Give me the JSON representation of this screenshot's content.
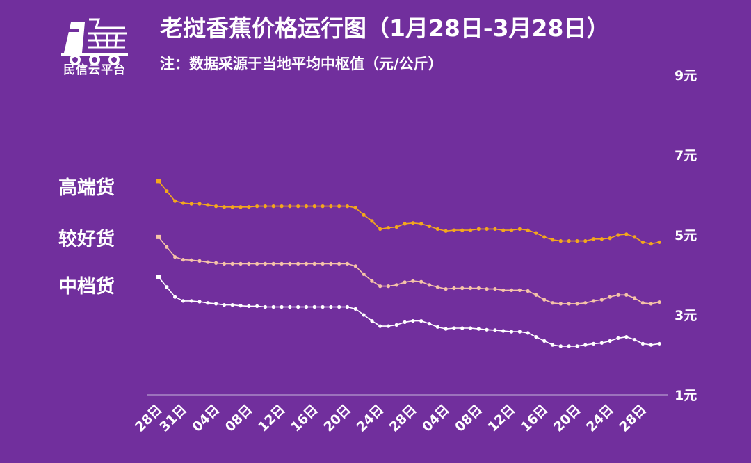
{
  "brand": {
    "name": "民信云平台",
    "logo_icon": "truck-logo-icon"
  },
  "header": {
    "title": "老挝香蕉价格运行图（1月28日-3月28日）",
    "subtitle": "注：数据采源于当地平均中枢值（元/公斤）"
  },
  "legend": {
    "high": "高端货",
    "good": "较好货",
    "mid": "中档货"
  },
  "chart_data": {
    "type": "line",
    "title": "老挝香蕉价格运行图（1月28日-3月28日）",
    "subtitle": "注：数据采源于当地平均中枢值（元/公斤）",
    "ylim": [
      1,
      9
    ],
    "y_ticks": [
      "9元",
      "7元",
      "5元",
      "3元",
      "1元"
    ],
    "y_tick_values": [
      9,
      7,
      5,
      3,
      1
    ],
    "x_tick_labels": [
      "28日",
      "31日",
      "04日",
      "08日",
      "12日",
      "16日",
      "20日",
      "24日",
      "28日",
      "04日",
      "08日",
      "12日",
      "16日",
      "20日",
      "24日",
      "28日"
    ],
    "x_tick_index": [
      0,
      3,
      7,
      11,
      15,
      19,
      23,
      27,
      31,
      35,
      39,
      43,
      47,
      51,
      55,
      59
    ],
    "legend_placement": "left",
    "grid": false,
    "colors": {
      "high": "#f4a81c",
      "good": "#f6c4a8",
      "mid": "#ffffff",
      "axis": "#c8b6dc",
      "background": "#712f9d"
    },
    "series": [
      {
        "name": "高端货",
        "key": "high",
        "values": [
          6.35,
          6.1,
          5.85,
          5.8,
          5.78,
          5.78,
          5.75,
          5.72,
          5.7,
          5.7,
          5.7,
          5.7,
          5.72,
          5.72,
          5.72,
          5.72,
          5.72,
          5.72,
          5.72,
          5.72,
          5.72,
          5.72,
          5.72,
          5.72,
          5.68,
          5.5,
          5.35,
          5.15,
          5.18,
          5.2,
          5.28,
          5.3,
          5.28,
          5.22,
          5.15,
          5.1,
          5.12,
          5.12,
          5.12,
          5.15,
          5.15,
          5.15,
          5.12,
          5.12,
          5.15,
          5.12,
          5.05,
          4.95,
          4.88,
          4.85,
          4.85,
          4.85,
          4.85,
          4.9,
          4.9,
          4.92,
          5.0,
          5.02,
          4.95,
          4.82,
          4.78,
          4.82
        ]
      },
      {
        "name": "较好货",
        "key": "good",
        "values": [
          4.95,
          4.7,
          4.45,
          4.38,
          4.37,
          4.35,
          4.32,
          4.3,
          4.28,
          4.28,
          4.28,
          4.28,
          4.28,
          4.28,
          4.28,
          4.28,
          4.28,
          4.28,
          4.28,
          4.28,
          4.28,
          4.28,
          4.28,
          4.28,
          4.22,
          4.02,
          3.85,
          3.72,
          3.72,
          3.75,
          3.82,
          3.85,
          3.83,
          3.75,
          3.7,
          3.65,
          3.67,
          3.67,
          3.67,
          3.67,
          3.65,
          3.65,
          3.62,
          3.62,
          3.62,
          3.6,
          3.5,
          3.38,
          3.3,
          3.28,
          3.28,
          3.28,
          3.3,
          3.35,
          3.38,
          3.45,
          3.5,
          3.5,
          3.42,
          3.3,
          3.28,
          3.32
        ]
      },
      {
        "name": "中档货",
        "key": "mid",
        "values": [
          3.95,
          3.7,
          3.45,
          3.35,
          3.35,
          3.33,
          3.3,
          3.28,
          3.25,
          3.25,
          3.23,
          3.22,
          3.22,
          3.2,
          3.2,
          3.2,
          3.2,
          3.2,
          3.2,
          3.2,
          3.2,
          3.2,
          3.2,
          3.2,
          3.15,
          3.0,
          2.85,
          2.72,
          2.72,
          2.75,
          2.82,
          2.85,
          2.85,
          2.78,
          2.7,
          2.65,
          2.67,
          2.67,
          2.67,
          2.65,
          2.63,
          2.62,
          2.6,
          2.58,
          2.58,
          2.55,
          2.45,
          2.35,
          2.25,
          2.22,
          2.22,
          2.22,
          2.25,
          2.28,
          2.3,
          2.35,
          2.42,
          2.45,
          2.38,
          2.28,
          2.25,
          2.28
        ]
      }
    ]
  }
}
